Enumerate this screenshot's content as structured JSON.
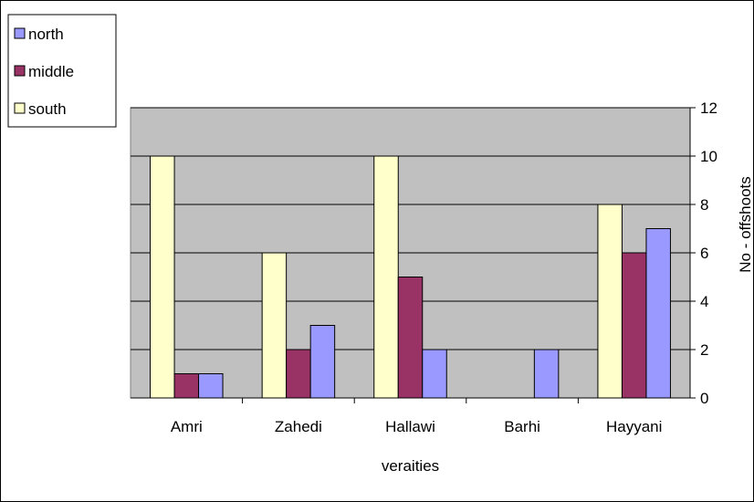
{
  "chart_data": {
    "type": "bar",
    "categories": [
      "Amri",
      "Zahedi",
      "Hallawi",
      "Barhi",
      "Hayyani"
    ],
    "series": [
      {
        "name": "south",
        "color": "#FFFFCC",
        "values": [
          10,
          6,
          10,
          0,
          8
        ]
      },
      {
        "name": "middle",
        "color": "#993366",
        "values": [
          1,
          2,
          5,
          0,
          6
        ]
      },
      {
        "name": "north",
        "color": "#9999FF",
        "values": [
          1,
          3,
          2,
          2,
          7
        ]
      }
    ],
    "legend_order": [
      "north",
      "middle",
      "south"
    ],
    "xlabel": "veraities",
    "ylabel": "No - offshoots",
    "ylim": [
      0,
      12
    ],
    "yticks": [
      0,
      2,
      4,
      6,
      8,
      10,
      12
    ],
    "y_axis_side": "right",
    "legend_position": "top-left",
    "grid": true,
    "plot_background": "#C0C0C0"
  }
}
